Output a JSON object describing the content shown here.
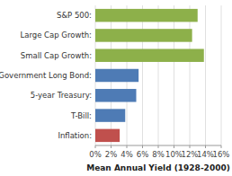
{
  "chart_data": {
    "type": "bar",
    "orientation": "horizontal",
    "categories": [
      "Inflation:",
      "T-Bill:",
      "5-year Treasury:",
      "Government Long Bond:",
      "Small Cap Growth:",
      "Large Cap Growth:",
      "S&P 500:"
    ],
    "values": [
      3.1,
      3.8,
      5.2,
      5.5,
      13.8,
      12.3,
      13.0
    ],
    "colors": [
      "#c0504d",
      "#4e7bb5",
      "#4e7bb5",
      "#4e7bb5",
      "#8db04a",
      "#8db04a",
      "#8db04a"
    ],
    "xlabel": "Mean Annual Yield (1928-2000)",
    "xlim": [
      0,
      16
    ],
    "xticks": [
      {
        "value": 0,
        "label": "0%"
      },
      {
        "value": 2,
        "label": "2%"
      },
      {
        "value": 4,
        "label": "4%"
      },
      {
        "value": 6,
        "label": "6%"
      },
      {
        "value": 8,
        "label": "8%"
      },
      {
        "value": 10,
        "label": "10%"
      },
      {
        "value": 12,
        "label": "12%"
      },
      {
        "value": 14,
        "label": "14%"
      },
      {
        "value": 16,
        "label": "16%"
      }
    ],
    "grid": true
  }
}
